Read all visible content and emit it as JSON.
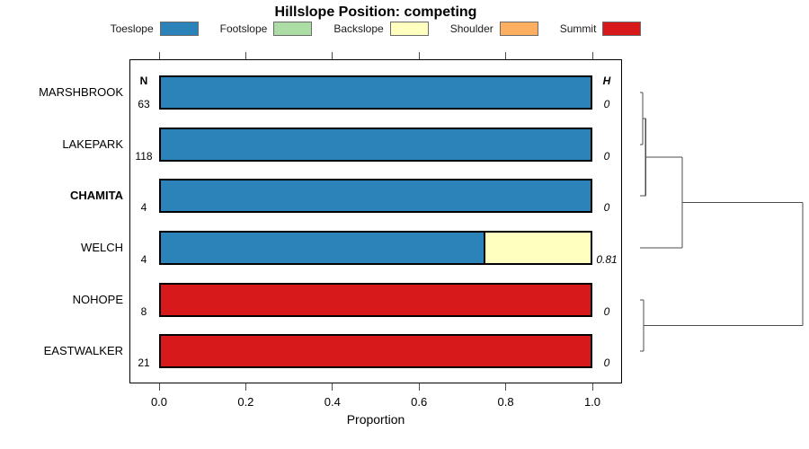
{
  "chart_data": {
    "type": "stacked_bar_horizontal_with_dendrogram",
    "title": "Hillslope Position: competing",
    "xlabel": "Proportion",
    "xlim": [
      0,
      1
    ],
    "xticks": [
      0,
      0.2,
      0.4,
      0.6,
      0.8,
      1.0
    ],
    "xtick_labels": [
      "0.0",
      "0.2",
      "0.4",
      "0.6",
      "0.8",
      "1.0"
    ],
    "categories": [
      "MARSHBROOK",
      "LAKEPARK",
      "CHAMITA",
      "WELCH",
      "NOHOPE",
      "EASTWALKER"
    ],
    "bold_categories": [
      "CHAMITA"
    ],
    "series": [
      {
        "name": "Toeslope",
        "color": "#2B83BA",
        "values": [
          1,
          1,
          1,
          0.75,
          0,
          0
        ]
      },
      {
        "name": "Footslope",
        "color": "#ABDDA4",
        "values": [
          0,
          0,
          0,
          0,
          0,
          0
        ]
      },
      {
        "name": "Backslope",
        "color": "#FFFFBF",
        "values": [
          0,
          0,
          0,
          0.25,
          0,
          0
        ]
      },
      {
        "name": "Shoulder",
        "color": "#FDAE61",
        "values": [
          0,
          0,
          0,
          0,
          0,
          0
        ]
      },
      {
        "name": "Summit",
        "color": "#D7191C",
        "values": [
          0,
          0,
          0,
          0,
          1,
          1
        ]
      }
    ],
    "annotations": {
      "n_header": "N",
      "h_header": "H",
      "N": [
        "63",
        "118",
        "4",
        "4",
        "8",
        "21"
      ],
      "H": [
        "0",
        "0",
        "0",
        "0.81",
        "0",
        "0"
      ]
    },
    "legend": {
      "position": "top",
      "items": [
        {
          "label": "Toeslope",
          "color": "#2B83BA"
        },
        {
          "label": "Footslope",
          "color": "#ABDDA4"
        },
        {
          "label": "Backslope",
          "color": "#FFFFBF"
        },
        {
          "label": "Shoulder",
          "color": "#FDAE61"
        },
        {
          "label": "Summit",
          "color": "#D7191C"
        }
      ]
    },
    "dendrogram": {
      "line_color": "#4d4d4d",
      "merges": [
        {
          "a": "MARSHBROOK",
          "b": "LAKEPARK",
          "frac": 0.017
        },
        {
          "a": "@0",
          "b": "CHAMITA",
          "frac": 0.035
        },
        {
          "a": "@1",
          "b": "WELCH",
          "frac": 0.26
        },
        {
          "a": "NOHOPE",
          "b": "EASTWALKER",
          "frac": 0.022
        },
        {
          "a": "@2",
          "b": "@3",
          "frac": 1.0
        }
      ]
    }
  }
}
